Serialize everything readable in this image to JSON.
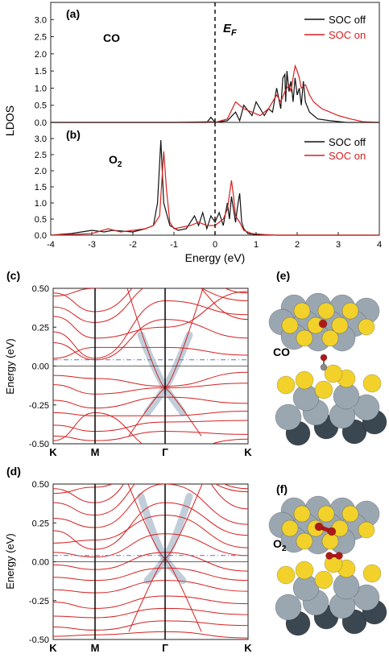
{
  "chart_data": [
    {
      "panel": "(a)",
      "type": "line",
      "label": "CO",
      "annotation": "E_F",
      "ylabel": "LDOS",
      "xlim": [
        -4,
        4
      ],
      "ylim": [
        0,
        3.5
      ],
      "yticks": [
        "0.0",
        "0.5",
        "1.0",
        "1.5",
        "2.0",
        "2.5",
        "3.0"
      ],
      "series": [
        {
          "name": "SOC off",
          "color": "#111111",
          "x": [
            -4,
            -1.0,
            -0.2,
            -0.1,
            0,
            0.3,
            0.5,
            0.6,
            0.7,
            0.9,
            1.0,
            1.2,
            1.3,
            1.4,
            1.5,
            1.55,
            1.6,
            1.65,
            1.7,
            1.72,
            1.75,
            1.8,
            1.85,
            1.9,
            1.95,
            2.0,
            2.05,
            2.1,
            2.15,
            2.2,
            2.3,
            2.5,
            2.8,
            3.2,
            4
          ],
          "y": [
            0,
            0,
            0,
            0.15,
            0,
            0.05,
            0.3,
            0.05,
            0.5,
            0.2,
            0.6,
            0.2,
            0.4,
            0.3,
            1.0,
            0.7,
            0.4,
            1.3,
            1.4,
            0.6,
            1.5,
            0.9,
            1.2,
            0.6,
            1.3,
            0.8,
            1.0,
            0.5,
            1.2,
            0.6,
            0.3,
            0.1,
            0.05,
            0,
            0
          ]
        },
        {
          "name": "SOC on",
          "color": "#d62020",
          "x": [
            -4,
            -1.0,
            -0.1,
            0,
            0.3,
            0.5,
            0.7,
            0.9,
            1.1,
            1.3,
            1.5,
            1.6,
            1.7,
            1.8,
            1.85,
            1.9,
            1.95,
            2.0,
            2.05,
            2.1,
            2.2,
            2.3,
            2.4,
            2.6,
            2.8,
            3.0,
            3.3,
            3.6,
            4
          ],
          "y": [
            0,
            0,
            0.02,
            0,
            0.1,
            0.6,
            0.4,
            0.3,
            0.2,
            0.4,
            0.8,
            0.6,
            0.9,
            1.1,
            0.9,
            1.3,
            1.65,
            1.5,
            1.3,
            1.0,
            1.1,
            0.8,
            0.6,
            0.4,
            0.3,
            0.2,
            0.1,
            0.02,
            0
          ]
        }
      ]
    },
    {
      "panel": "(b)",
      "type": "line",
      "label": "O",
      "label_sub": "2",
      "ylabel": "LDOS",
      "xlabel": "Energy (eV)",
      "xlim": [
        -4,
        4
      ],
      "ylim": [
        0,
        3.5
      ],
      "xticks": [
        "-4",
        "-3",
        "-2",
        "-1",
        "0",
        "1",
        "2",
        "3",
        "4"
      ],
      "yticks": [
        "0.0",
        "0.5",
        "1.0",
        "1.5",
        "2.0",
        "2.5",
        "3.0"
      ],
      "series": [
        {
          "name": "SOC off",
          "color": "#111111",
          "x": [
            -4,
            -3.5,
            -3.0,
            -2.7,
            -2.5,
            -2.0,
            -1.7,
            -1.5,
            -1.4,
            -1.32,
            -1.25,
            -1.1,
            -0.9,
            -0.7,
            -0.5,
            -0.4,
            -0.3,
            -0.2,
            -0.1,
            0,
            0.1,
            0.2,
            0.3,
            0.35,
            0.4,
            0.5,
            0.55,
            0.6,
            0.65,
            0.7,
            0.8,
            1.0,
            1.5,
            2.0,
            4
          ],
          "y": [
            0,
            0.05,
            0.15,
            0.1,
            0.15,
            0.1,
            0.2,
            0.3,
            1.0,
            2.95,
            1.0,
            0.3,
            0.15,
            0.2,
            0.6,
            0.3,
            0.7,
            0.2,
            0.6,
            0.4,
            0.7,
            0.3,
            1.0,
            0.5,
            1.2,
            0.4,
            0.9,
            1.3,
            0.4,
            0.2,
            0.05,
            0.02,
            0,
            0,
            0
          ]
        },
        {
          "name": "SOC on",
          "color": "#d62020",
          "x": [
            -4,
            -3.5,
            -3.0,
            -2.6,
            -2.3,
            -2.0,
            -1.7,
            -1.5,
            -1.35,
            -1.25,
            -1.18,
            -1.1,
            -1.0,
            -0.8,
            -0.6,
            -0.4,
            -0.2,
            0,
            0.2,
            0.3,
            0.4,
            0.45,
            0.5,
            0.6,
            0.7,
            0.9,
            1.2,
            1.5,
            2.0,
            4
          ],
          "y": [
            0,
            0.02,
            0.05,
            0.2,
            0.1,
            0.15,
            0.2,
            0.3,
            0.6,
            2.6,
            1.4,
            0.4,
            0.2,
            0.25,
            0.3,
            0.4,
            0.3,
            0.3,
            0.5,
            0.8,
            1.7,
            1.2,
            0.6,
            0.4,
            0.15,
            0.05,
            0.02,
            0,
            0,
            0
          ]
        }
      ]
    },
    {
      "panel": "(c)",
      "type": "line",
      "ylabel": "Energy (eV)",
      "xticks": [
        "K",
        "M",
        "Γ",
        "K"
      ],
      "ylim": [
        -0.5,
        0.5
      ],
      "yticks": [
        "-0.50",
        "-0.25",
        "0.00",
        "0.25",
        "0.50"
      ],
      "fermi_level": 0.04,
      "dirac_point": -0.14
    },
    {
      "panel": "(d)",
      "type": "line",
      "ylabel": "Energy (eV)",
      "xticks": [
        "K",
        "M",
        "Γ",
        "K"
      ],
      "ylim": [
        -0.5,
        0.5
      ],
      "yticks": [
        "-0.50",
        "-0.25",
        "0.00",
        "0.25",
        "0.50"
      ],
      "fermi_level": 0.04,
      "dirac_point": 0.02
    }
  ],
  "structures": [
    {
      "panel": "(e)",
      "label": "CO"
    },
    {
      "panel": "(f)",
      "label": "O",
      "label_sub": "2"
    }
  ],
  "colors": {
    "soc_off": "#111111",
    "soc_on": "#d62020",
    "band": "#d62020",
    "fermi": "#5577cc",
    "highlight": "#9fb3c6",
    "atom_gold": "#f2d22a",
    "atom_grey": "#9aa6b0",
    "atom_dark": "#3a4650",
    "atom_red": "#b01818"
  }
}
